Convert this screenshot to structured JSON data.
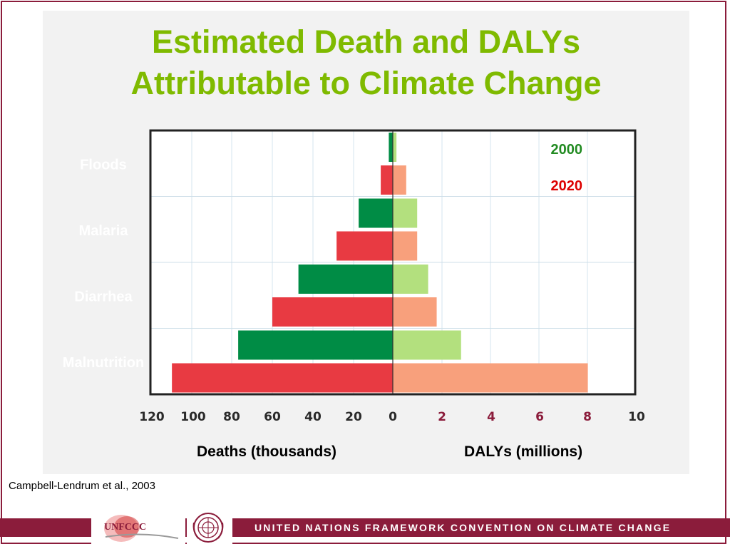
{
  "slide": {
    "title_line1": "Estimated Death and DALYs",
    "title_line2": "Attributable to Climate Change",
    "source": "Campbell-Lendrum et al., 2003",
    "footer_text": "UNITED NATIONS FRAMEWORK CONVENTION ON CLIMATE CHANGE",
    "logo_text": "UNFCCC"
  },
  "chart_data": {
    "type": "bar",
    "orientation": "horizontal-butterfly",
    "categories": [
      "Floods",
      "Malaria",
      "Diarrhea",
      "Malnutrition"
    ],
    "series": [
      {
        "name": "2000",
        "color_deaths": "#008c45",
        "color_dalys": "#b3e07e",
        "deaths_thousands": [
          2,
          17,
          47,
          77
        ],
        "dalys_millions": [
          0.15,
          1.0,
          1.45,
          2.8
        ]
      },
      {
        "name": "2020",
        "color_deaths": "#e83a42",
        "color_dalys": "#f8a07c",
        "deaths_thousands": [
          6,
          28,
          60,
          110
        ],
        "dalys_millions": [
          0.55,
          1.0,
          1.8,
          8.0
        ]
      }
    ],
    "left_axis": {
      "label": "Deaths (thousands)",
      "ticks": [
        "120",
        "100",
        "80",
        "60",
        "40",
        "20",
        "0"
      ],
      "range": [
        0,
        120
      ]
    },
    "right_axis": {
      "label": "DALYs (millions)",
      "ticks": [
        "2",
        "4",
        "6",
        "8",
        "10"
      ],
      "range": [
        0,
        10
      ]
    },
    "legend": {
      "placement": "top-right",
      "entries": [
        {
          "label": "2000",
          "color": "#228b22"
        },
        {
          "label": "2020",
          "color": "#dd0000"
        }
      ]
    },
    "grid": true
  }
}
